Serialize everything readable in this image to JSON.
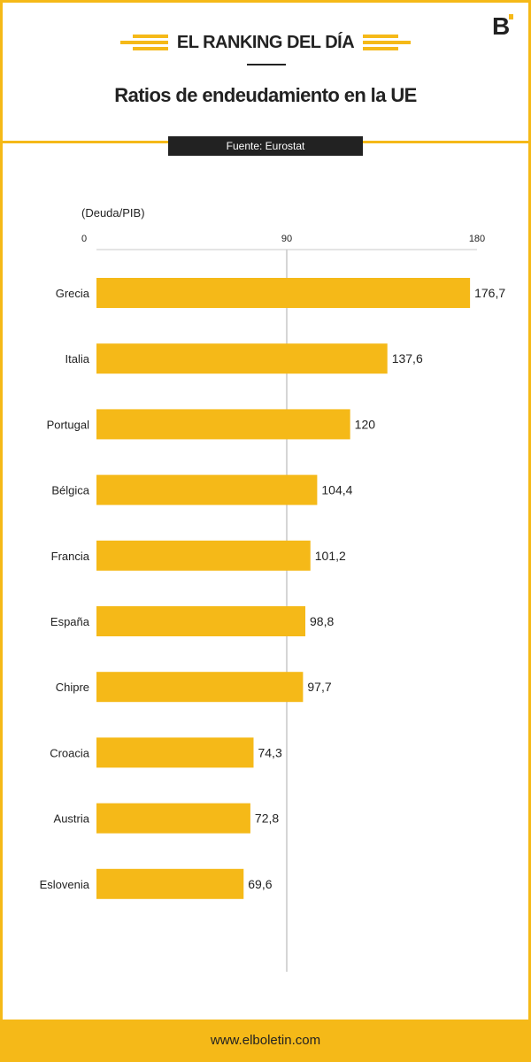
{
  "header": {
    "ranking_label": "EL RANKING DEL DÍA",
    "title": "Ratios de endeudamiento en la UE",
    "source": "Fuente: Eurostat",
    "logo_icon": "elboletin-logo-icon"
  },
  "footer": {
    "url": "www.elboletin.com"
  },
  "colors": {
    "accent": "#f5b918",
    "dark": "#222222",
    "gridline": "#c8c8c8"
  },
  "chart_data": {
    "type": "bar",
    "orientation": "horizontal",
    "ylabel": "(Deuda/PIB)",
    "xlim": [
      0,
      180
    ],
    "xticks": [
      "0",
      "90",
      "180"
    ],
    "grid": "single vertical line at 90",
    "categories": [
      "Grecia",
      "Italia",
      "Portugal",
      "Bélgica",
      "Francia",
      "España",
      "Chipre",
      "Croacia",
      "Austria",
      "Eslovenia"
    ],
    "values": [
      176.7,
      137.6,
      120,
      104.4,
      101.2,
      98.8,
      97.7,
      74.3,
      72.8,
      69.6
    ],
    "value_labels": [
      "176,7",
      "137,6",
      "120",
      "104,4",
      "101,2",
      "98,8",
      "97,7",
      "74,3",
      "72,8",
      "69,6"
    ]
  }
}
